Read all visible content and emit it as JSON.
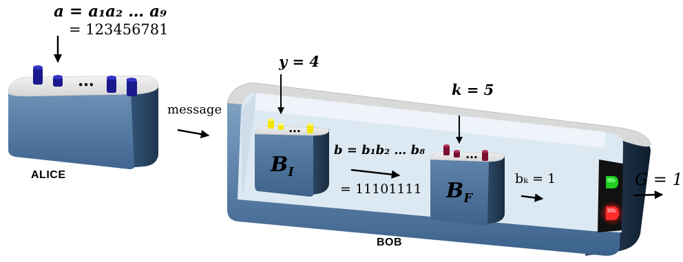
{
  "alice": {
    "label": "ALICE",
    "input_formula": "a = a₁a₂ … a₉",
    "input_value": "= 123456781",
    "peg_ellipsis": "…"
  },
  "message_label": "message",
  "bob": {
    "label": "BOB",
    "y_label": "y = 4",
    "k_label": "k = 5",
    "box_initial": "B",
    "box_initial_sub": "I",
    "box_final": "B",
    "box_final_sub": "F",
    "b_formula": "b = b₁b₂ … b₈",
    "b_value": "= 11101111",
    "bk_label": "bₖ = 1",
    "output_label": "G = 1",
    "peg_ellipsis": "…"
  },
  "colors": {
    "alice_pegs": "#1a1a8c",
    "bi_pegs": "#f2e600",
    "bf_pegs": "#7a0f2e",
    "light_green": "#22cc22",
    "light_red": "#ff2a2a",
    "box_blue": "#5a7fa8",
    "bob_interior": "#dde9f2"
  }
}
